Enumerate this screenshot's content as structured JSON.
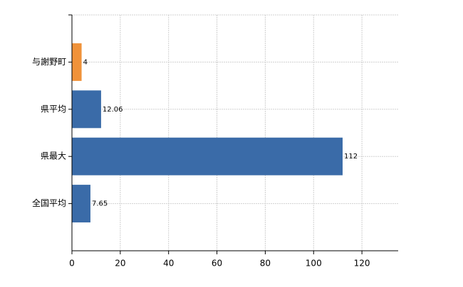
{
  "chart_data": {
    "type": "bar",
    "orientation": "horizontal",
    "categories": [
      "与謝野町",
      "県平均",
      "県最大",
      "全国平均"
    ],
    "values": [
      4,
      12.06,
      112,
      7.65
    ],
    "colors": [
      "#f0923a",
      "#3a6ba8",
      "#3a6ba8",
      "#3a6ba8"
    ],
    "xlim": [
      0,
      135
    ],
    "xticks": [
      0,
      20,
      40,
      60,
      80,
      100,
      120
    ],
    "grid": true
  }
}
